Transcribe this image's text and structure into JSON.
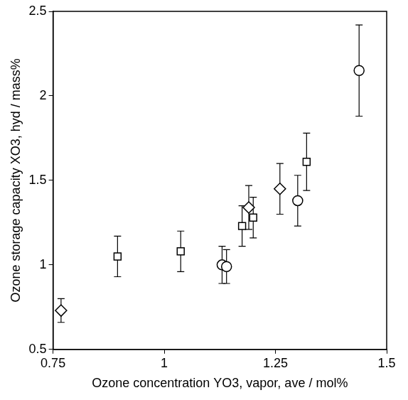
{
  "chart_data": {
    "type": "scatter",
    "x_label": "Ozone concentration YO3, vapor, ave / mol%",
    "y_label": "Ozone storage capacity XO3, hyd / mass%",
    "xlim": [
      0.75,
      1.5
    ],
    "xticks": [
      0.75,
      1,
      1.25,
      1.5
    ],
    "ylim": [
      0.5,
      2.5
    ],
    "yticks": [
      0.5,
      1,
      1.5,
      2,
      2.5
    ],
    "grid": false,
    "series": [
      {
        "marker": "circle",
        "color": "#000000",
        "x": [
          1.13,
          1.14,
          1.3,
          1.438
        ],
        "values": [
          1.0,
          0.99,
          1.38,
          2.15
        ],
        "errors": [
          0.11,
          0.1,
          0.15,
          0.27
        ]
      },
      {
        "marker": "square",
        "color": "#000000",
        "x": [
          0.895,
          1.037,
          1.175,
          1.2,
          1.32
        ],
        "values": [
          1.05,
          1.08,
          1.23,
          1.28,
          1.61
        ],
        "errors": [
          0.12,
          0.12,
          0.12,
          0.12,
          0.17
        ]
      },
      {
        "marker": "diamond",
        "color": "#000000",
        "x": [
          0.768,
          1.19,
          1.26
        ],
        "values": [
          0.73,
          1.34,
          1.45
        ],
        "errors": [
          0.07,
          0.13,
          0.15
        ]
      }
    ]
  }
}
